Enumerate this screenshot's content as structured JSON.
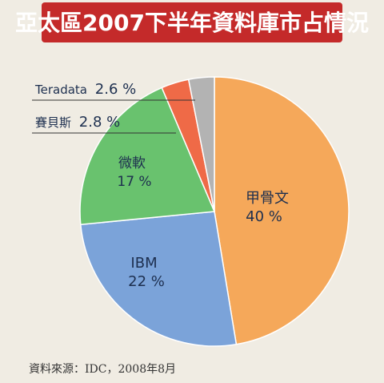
{
  "chart_data": {
    "type": "pie",
    "title": "亞太區2007下半年資料庫市占情況",
    "slices": [
      {
        "name": "甲骨文",
        "value": 40,
        "value_label": "40 %",
        "color": "#f5a85a"
      },
      {
        "name": "IBM",
        "value": 22,
        "value_label": "22 %",
        "color": "#7ba3d9"
      },
      {
        "name": "微軟",
        "value": 17,
        "value_label": "17 %",
        "color": "#69c26e"
      },
      {
        "name": "賽貝斯",
        "value": 2.8,
        "value_label": "2.8 %",
        "color": "#ef6a47"
      },
      {
        "name": "Teradata",
        "value": 2.6,
        "value_label": "2.6 %",
        "color": "#b3b3b3"
      }
    ],
    "source": "資料來源：IDC，2008年8月"
  },
  "colors": {
    "title_bar": "#c42a2a",
    "background": "#f0ece3",
    "label_text": "#1d2f4f"
  }
}
